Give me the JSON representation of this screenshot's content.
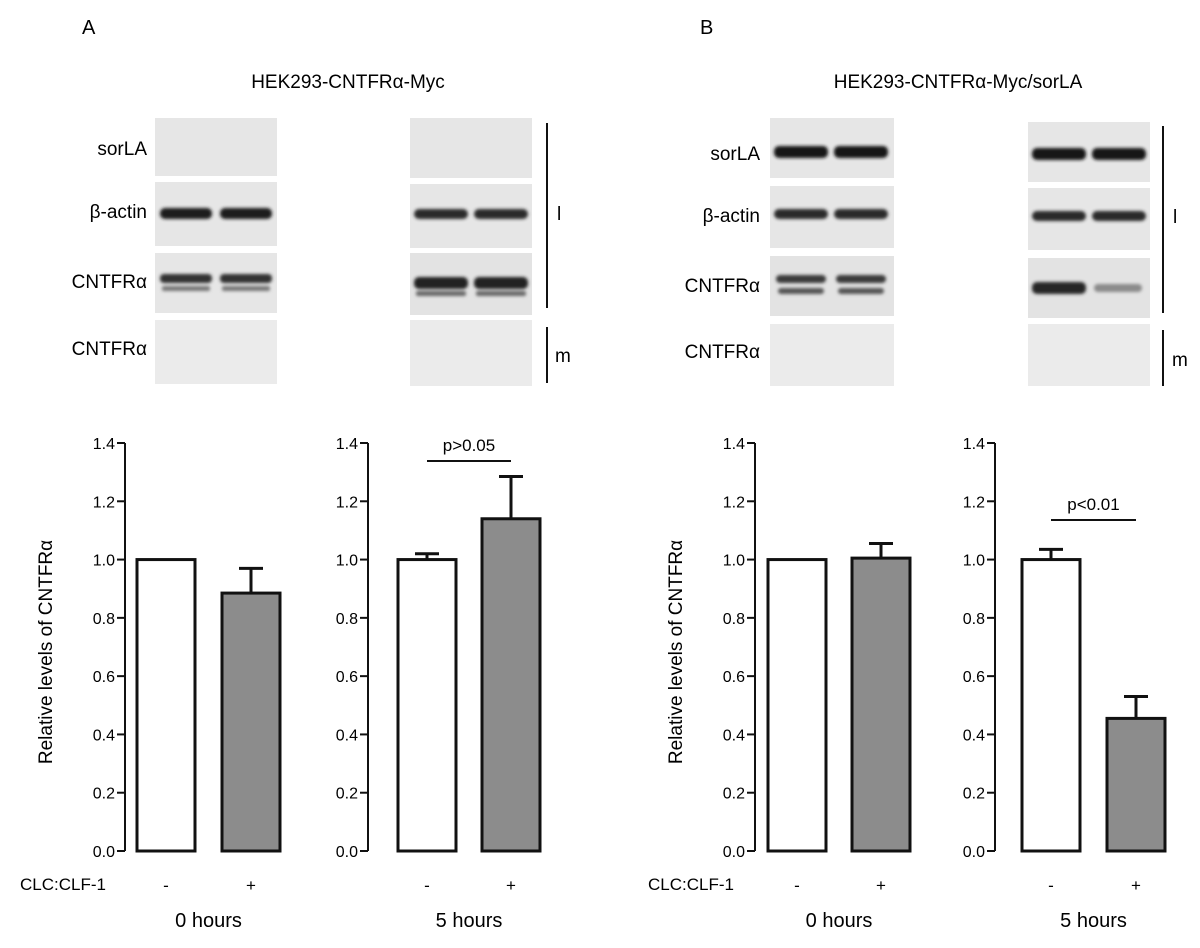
{
  "panels": [
    {
      "letter": "A",
      "cell_line": "HEK293-CNTFRα-Myc",
      "blot_rows": [
        {
          "label": "sorLA",
          "band": "none"
        },
        {
          "label": "β-actin",
          "band": "strong"
        },
        {
          "label": "CNTFRα",
          "band": "doublet"
        },
        {
          "label": "CNTFRα",
          "band": "none"
        }
      ],
      "fraction_labels": [
        "l",
        "m"
      ]
    },
    {
      "letter": "B",
      "cell_line": "HEK293-CNTFRα-Myc/sorLA",
      "blot_rows": [
        {
          "label": "sorLA",
          "band": "strong"
        },
        {
          "label": "β-actin",
          "band": "strong"
        },
        {
          "label": "CNTFRα",
          "band": "doublet"
        },
        {
          "label": "CNTFRα",
          "band": "none"
        }
      ],
      "fraction_labels": [
        "l",
        "m"
      ]
    }
  ],
  "treatment_label": "CLC:CLF-1",
  "ylabel": "Relative levels of CNTFRα",
  "chart_data": [
    {
      "type": "bar",
      "panel": "A",
      "xlabel": "0 hours",
      "categories": [
        "-",
        "+"
      ],
      "values": [
        1.0,
        0.885
      ],
      "errors": [
        0.0,
        0.085
      ],
      "ylim": [
        0,
        1.4
      ],
      "yticks": [
        "0.0",
        "0.2",
        "0.4",
        "0.6",
        "0.8",
        "1.0",
        "1.2",
        "1.4"
      ],
      "colors": [
        "#ffffff",
        "#8c8c8c"
      ]
    },
    {
      "type": "bar",
      "panel": "A",
      "xlabel": "5 hours",
      "categories": [
        "-",
        "+"
      ],
      "values": [
        1.0,
        1.14
      ],
      "errors": [
        0.02,
        0.145
      ],
      "ylim": [
        0,
        1.4
      ],
      "yticks": [
        "0.0",
        "0.2",
        "0.4",
        "0.6",
        "0.8",
        "1.0",
        "1.2",
        "1.4"
      ],
      "colors": [
        "#ffffff",
        "#8c8c8c"
      ],
      "annotation": "p>0.05"
    },
    {
      "type": "bar",
      "panel": "B",
      "xlabel": "0 hours",
      "categories": [
        "-",
        "+"
      ],
      "values": [
        1.0,
        1.005
      ],
      "errors": [
        0.0,
        0.05
      ],
      "ylim": [
        0,
        1.4
      ],
      "yticks": [
        "0.0",
        "0.2",
        "0.4",
        "0.6",
        "0.8",
        "1.0",
        "1.2",
        "1.4"
      ],
      "colors": [
        "#ffffff",
        "#8c8c8c"
      ]
    },
    {
      "type": "bar",
      "panel": "B",
      "xlabel": "5 hours",
      "categories": [
        "-",
        "+"
      ],
      "values": [
        1.0,
        0.455
      ],
      "errors": [
        0.035,
        0.075
      ],
      "ylim": [
        0,
        1.4
      ],
      "yticks": [
        "0.0",
        "0.2",
        "0.4",
        "0.6",
        "0.8",
        "1.0",
        "1.2",
        "1.4"
      ],
      "colors": [
        "#ffffff",
        "#8c8c8c"
      ],
      "annotation": "p<0.01"
    }
  ]
}
